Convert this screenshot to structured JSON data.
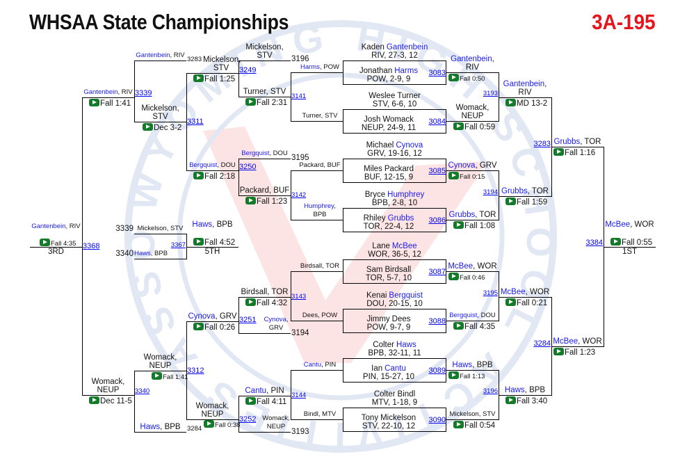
{
  "header": {
    "title": "WHSAA State Championships",
    "weight_class": "3A-195"
  },
  "watermark": "WYOMING HIGH SCHOOL ACTIVITIES ASSOCIATION",
  "colors": {
    "highlight": "#1a1aee",
    "link": "#0000ee",
    "weight_class": "#e8141c",
    "video_icon": "#137a2a"
  },
  "icons": {
    "result": "play-video-icon"
  },
  "championship": {
    "round1": [
      {
        "bout": "3083",
        "top": {
          "first": "Kaden",
          "last": "Gantenbein",
          "detail": "RIV, 27-3, 12",
          "hl": true
        },
        "bottom": {
          "first": "Jonathan",
          "last": "Harms",
          "detail": "POW, 2-9, 9",
          "hl": true
        },
        "winner": {
          "name": "Gantenbein",
          "team": "RIV",
          "hl": true
        },
        "result": "Fall 0:50"
      },
      {
        "bout": "3084",
        "top": {
          "first": "Weslee",
          "last": "Turner",
          "detail": "STV, 6-6, 10",
          "hl": false
        },
        "bottom": {
          "first": "Josh",
          "last": "Womack",
          "detail": "NEUP, 24-9, 11",
          "hl": false
        },
        "winner": {
          "name": "Womack",
          "team": "NEUP",
          "hl": false
        },
        "result": "Fall 0:59"
      },
      {
        "bout": "3085",
        "top": {
          "first": "Michael",
          "last": "Cynova",
          "detail": "GRV, 19-16, 12",
          "hl": true
        },
        "bottom": {
          "first": "Miles",
          "last": "Packard",
          "detail": "BUF, 12-15, 9",
          "hl": false
        },
        "winner": {
          "name": "Cynova",
          "team": "GRV",
          "hl": true
        },
        "result": "Fall 0:15"
      },
      {
        "bout": "3086",
        "top": {
          "first": "Bryce",
          "last": "Humphrey",
          "detail": "BPB, 2-8, 10",
          "hl": true
        },
        "bottom": {
          "first": "Rhiley",
          "last": "Grubbs",
          "detail": "TOR, 22-4, 12",
          "hl": true
        },
        "winner": {
          "name": "Grubbs",
          "team": "TOR",
          "hl": true
        },
        "result": "Fall 1:08"
      },
      {
        "bout": "3087",
        "top": {
          "first": "Lane",
          "last": "McBee",
          "detail": "WOR, 36-5, 12",
          "hl": true
        },
        "bottom": {
          "first": "Sam",
          "last": "Birdsall",
          "detail": "TOR, 5-7, 10",
          "hl": false
        },
        "winner": {
          "name": "McBee",
          "team": "WOR",
          "hl": true
        },
        "result": "Fall 0:46"
      },
      {
        "bout": "3088",
        "top": {
          "first": "Kenai",
          "last": "Bergquist",
          "detail": "DOU, 20-15, 10",
          "hl": true
        },
        "bottom": {
          "first": "Jimmy",
          "last": "Dees",
          "detail": "POW, 9-7, 9",
          "hl": false
        },
        "winner": {
          "name": "Bergquist",
          "team": "DOU",
          "hl": true
        },
        "result": "Fall 4:35"
      },
      {
        "bout": "3089",
        "top": {
          "first": "Colter",
          "last": "Haws",
          "detail": "BPB, 32-11, 11",
          "hl": true
        },
        "bottom": {
          "first": "Ian",
          "last": "Cantu",
          "detail": "PIN, 15-27, 10",
          "hl": true
        },
        "winner": {
          "name": "Haws",
          "team": "BPB",
          "hl": true
        },
        "result": "Fall 1:13"
      },
      {
        "bout": "3090",
        "top": {
          "first": "Colter",
          "last": "Bindl",
          "detail": "MTV, 1-18, 9",
          "hl": false
        },
        "bottom": {
          "first": "Tony",
          "last": "Mickelson",
          "detail": "STV, 22-10, 12",
          "hl": false
        },
        "winner": {
          "name": "Mickelson",
          "team": "STV",
          "hl": false
        },
        "result": "Fall 0:54"
      }
    ],
    "quarterfinals": [
      {
        "bout": "3193",
        "winner": {
          "name": "Gantenbein",
          "team": "RIV",
          "hl": true
        },
        "result": "MD 13-2"
      },
      {
        "bout": "3194",
        "winner": {
          "name": "Grubbs",
          "team": "TOR",
          "hl": true
        },
        "result": "Fall 1:59"
      },
      {
        "bout": "3195",
        "winner": {
          "name": "McBee",
          "team": "WOR",
          "hl": true
        },
        "result": "Fall 0:21"
      },
      {
        "bout": "3196",
        "winner": {
          "name": "Haws",
          "team": "BPB",
          "hl": true
        },
        "result": "Fall 3:40"
      }
    ],
    "semifinals": [
      {
        "bout": "3283",
        "winner": {
          "name": "Grubbs",
          "team": "TOR",
          "hl": true
        },
        "result": "Fall 1:16"
      },
      {
        "bout": "3284",
        "winner": {
          "name": "McBee",
          "team": "WOR",
          "hl": true
        },
        "result": "Fall 1:23"
      }
    ],
    "final": {
      "bout": "3384",
      "winner": {
        "name": "McBee",
        "team": "WOR",
        "hl": true
      },
      "result": "Fall 0:55",
      "place": "1ST"
    }
  },
  "consolation": {
    "losers": [
      {
        "name": "Harms",
        "team": "POW",
        "hl": true
      },
      {
        "name": "Turner",
        "team": "STV",
        "hl": false
      },
      {
        "name": "Packard",
        "team": "BUF",
        "hl": false
      },
      {
        "name": "Humphrey",
        "team": "BPB",
        "hl": true
      },
      {
        "name": "Birdsall",
        "team": "TOR",
        "hl": false
      },
      {
        "name": "Dees",
        "team": "POW",
        "hl": false
      },
      {
        "name": "Cantu",
        "team": "PIN",
        "hl": true
      },
      {
        "name": "Bindl",
        "team": "MTV",
        "hl": false
      }
    ],
    "round1": [
      {
        "bout": "3141",
        "winner": {
          "name": "Turner",
          "team": "STV",
          "hl": false
        },
        "result": "Fall 2:31"
      },
      {
        "bout": "3142",
        "winner": {
          "name": "Packard",
          "team": "BUF",
          "hl": false
        },
        "result": "Fall 1:23"
      },
      {
        "bout": "3143",
        "winner": {
          "name": "Birdsall",
          "team": "TOR",
          "hl": false
        },
        "result": "Fall 4:32"
      },
      {
        "bout": "3144",
        "winner": {
          "name": "Cantu",
          "team": "PIN",
          "hl": true
        },
        "result": "Fall 4:11"
      }
    ],
    "round2": [
      {
        "bout": "3249",
        "dropin": {
          "name": "Mickelson",
          "team": "STV",
          "hl": false,
          "from": "3196"
        },
        "winner": {
          "name": "Mickelson",
          "team": "STV",
          "hl": false
        },
        "result": "Fall 1:25"
      },
      {
        "bout": "3250",
        "dropin": {
          "name": "Bergquist",
          "team": "DOU",
          "hl": true,
          "from": "3195"
        },
        "winner": {
          "name": "Bergquist",
          "team": "DOU",
          "hl": true
        },
        "result": "Fall 2:18"
      },
      {
        "bout": "3251",
        "dropin": {
          "name": "Cynova",
          "team": "GRV",
          "hl": true,
          "from": "3194"
        },
        "winner": {
          "name": "Cynova",
          "team": "GRV",
          "hl": true
        },
        "result": "Fall 0:26"
      },
      {
        "bout": "3252",
        "dropin": {
          "name": "Womack",
          "team": "NEUP",
          "hl": false,
          "from": "3193"
        },
        "winner": {
          "name": "Womack",
          "team": "NEUP",
          "hl": false
        },
        "result": "Fall 0:38"
      }
    ],
    "round3": [
      {
        "bout": "3311",
        "winner": {
          "name": "Mickelson",
          "team": "STV",
          "hl": false
        },
        "result": "Dec 3-2"
      },
      {
        "bout": "3312",
        "winner": {
          "name": "Womack",
          "team": "NEUP",
          "hl": false
        },
        "result": "Fall 1:41"
      }
    ],
    "semifinals": [
      {
        "bout": "3339",
        "dropin": {
          "name": "Gantenbein",
          "team": "RIV",
          "hl": true,
          "from": "3283"
        },
        "winner": {
          "name": "Gantenbein",
          "team": "RIV",
          "hl": true
        },
        "result": "Fall 1:41"
      },
      {
        "bout": "3340",
        "dropin": {
          "name": "Haws",
          "team": "BPB",
          "hl": true,
          "from": "3284"
        },
        "winner": {
          "name": "Womack",
          "team": "NEUP",
          "hl": false
        },
        "result": "Dec 11-5"
      }
    ],
    "third": {
      "bout": "3368",
      "winner": {
        "name": "Gantenbein",
        "team": "RIV",
        "hl": true
      },
      "result": "Fall 4:35",
      "place": "3RD"
    },
    "fifth": {
      "bout": "3367",
      "entries": [
        {
          "name": "Mickelson",
          "team": "STV",
          "hl": false,
          "from": "3339"
        },
        {
          "name": "Haws",
          "team": "BPB",
          "hl": true,
          "from": "3340"
        }
      ],
      "winner": {
        "name": "Haws",
        "team": "BPB",
        "hl": true
      },
      "result": "Fall 4:52",
      "place": "5TH"
    }
  }
}
